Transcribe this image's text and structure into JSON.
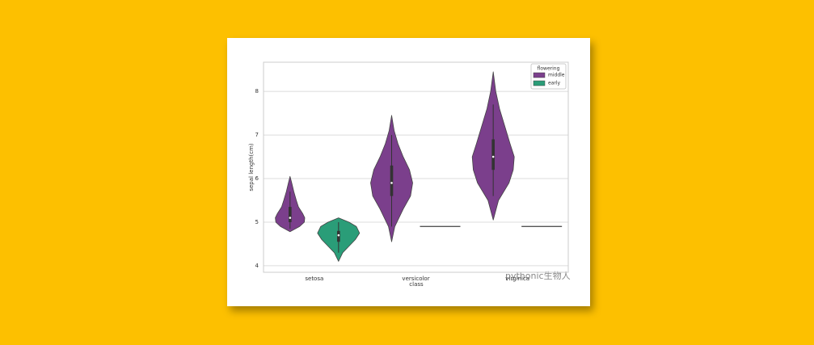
{
  "chart_data": {
    "type": "violin",
    "xlabel": "class",
    "ylabel": "sepal length(cm)",
    "categories": [
      "setosa",
      "versicolor",
      "virginica"
    ],
    "ylim": [
      3.85,
      8.67
    ],
    "yticks": [
      4,
      5,
      6,
      7,
      8
    ],
    "grid": true,
    "legend_title": "flowering",
    "legend": "upper right",
    "watermark": "pythonic生物人",
    "series": [
      {
        "name": "middle",
        "color": "#7b3f8c",
        "violins": [
          {
            "kde_y": [
              4.78,
              4.9,
              5.0,
              5.1,
              5.2,
              5.35,
              5.5,
              5.7,
              5.9,
              6.05
            ],
            "kde_density": [
              0,
              0.45,
              0.68,
              0.7,
              0.6,
              0.4,
              0.3,
              0.18,
              0.08,
              0
            ],
            "whisker_low": 4.85,
            "q1": 5.0,
            "median": 5.1,
            "q3": 5.35,
            "whisker_high": 5.7
          },
          {
            "kde_y": [
              4.55,
              4.9,
              5.3,
              5.6,
              5.9,
              6.2,
              6.5,
              6.8,
              7.1,
              7.45
            ],
            "kde_density": [
              0,
              0.15,
              0.55,
              0.9,
              1.0,
              0.85,
              0.55,
              0.3,
              0.12,
              0
            ],
            "whisker_low": 4.9,
            "q1": 5.6,
            "median": 5.9,
            "q3": 6.3,
            "whisker_high": 7.0
          },
          {
            "kde_y": [
              5.05,
              5.5,
              5.9,
              6.2,
              6.5,
              6.8,
              7.2,
              7.6,
              8.0,
              8.45
            ],
            "kde_density": [
              0,
              0.25,
              0.75,
              0.95,
              1.0,
              0.8,
              0.55,
              0.3,
              0.12,
              0
            ],
            "whisker_low": 5.6,
            "q1": 6.2,
            "median": 6.5,
            "q3": 6.9,
            "whisker_high": 7.7
          }
        ]
      },
      {
        "name": "early",
        "color": "#2a9d78",
        "violins": [
          {
            "kde_y": [
              4.1,
              4.3,
              4.45,
              4.6,
              4.75,
              4.9,
              5.0,
              5.1
            ],
            "kde_density": [
              0,
              0.2,
              0.5,
              0.8,
              1.0,
              0.85,
              0.5,
              0
            ],
            "whisker_low": 4.3,
            "q1": 4.55,
            "median": 4.7,
            "q3": 4.8,
            "whisker_high": 5.0
          },
          {
            "values": [
              4.9
            ]
          },
          {
            "values": [
              4.9
            ]
          }
        ]
      }
    ]
  }
}
